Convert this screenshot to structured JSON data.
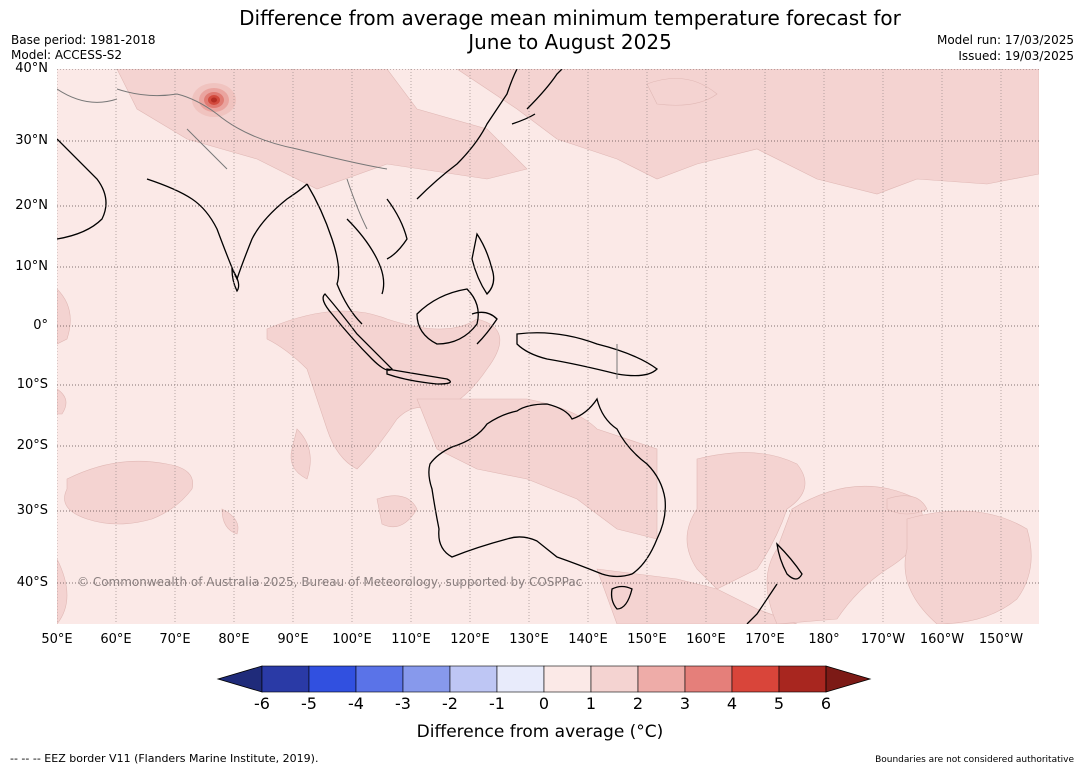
{
  "header": {
    "title_line1": "Difference from average mean minimum temperature forecast for",
    "title_line2": "June to August 2025",
    "base_period": "Base period: 1981-2018",
    "model": "Model: ACCESS-S2",
    "model_run": "Model run: 17/03/2025",
    "issued": "Issued: 19/03/2025"
  },
  "map": {
    "lat_labels": [
      "40°N",
      "30°N",
      "20°N",
      "10°N",
      "0°",
      "10°S",
      "20°S",
      "30°S",
      "40°S"
    ],
    "lon_labels": [
      "50°E",
      "60°E",
      "70°E",
      "80°E",
      "90°E",
      "100°E",
      "110°E",
      "120°E",
      "130°E",
      "140°E",
      "150°E",
      "160°E",
      "170°E",
      "180°",
      "170°W",
      "160°W",
      "150°W"
    ],
    "copyright": "© Commonwealth of Australia 2025, Bureau of Meteorology, supported by COSPPac",
    "base_color": "#fbe9e7",
    "anomaly_color": "#f4d3d1"
  },
  "colorbar": {
    "ticks": [
      "-6",
      "-5",
      "-4",
      "-3",
      "-2",
      "-1",
      "0",
      "1",
      "2",
      "3",
      "4",
      "5",
      "6"
    ],
    "colors": [
      "#2a3aa6",
      "#3150e0",
      "#5a73e8",
      "#8799ec",
      "#bec6f4",
      "#e8ebfb",
      "#fbe9e7",
      "#f4d3d1",
      "#eeaca8",
      "#e57f7a",
      "#d9453a",
      "#a8261f"
    ],
    "low_extend_color": "#1f2b7a",
    "high_extend_color": "#7c1a16",
    "title": "Difference from average (°C)"
  },
  "footer": {
    "eez": "--  --  -- EEZ border V11 (Flanders Marine Institute, 2019).",
    "boundaries": "Boundaries are not considered authoritative"
  }
}
